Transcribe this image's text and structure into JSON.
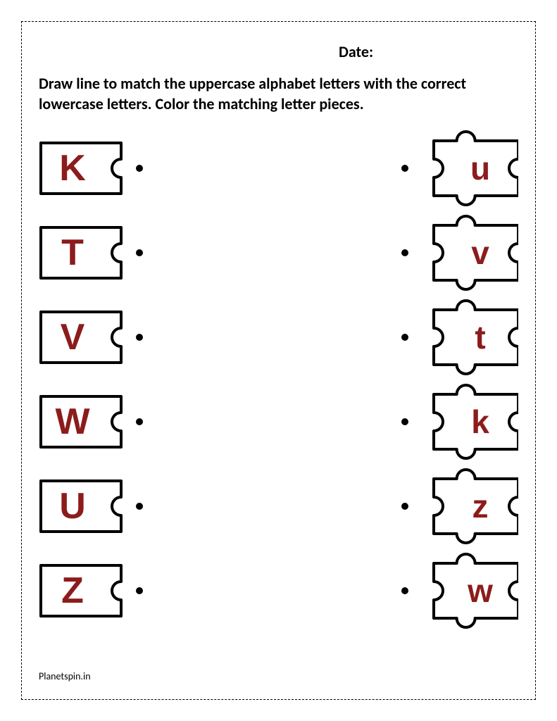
{
  "date_label": "Date:",
  "instructions": "Draw line to match the uppercase alphabet letters with the correct lowercase letters. Color the matching letter pieces.",
  "footer": "Planetspin.in",
  "letter_color": "#8C1C1C",
  "stroke_color": "#000000",
  "background": "#ffffff",
  "uppercase_font_size": 52,
  "lowercase_font_size": 46,
  "pairs": [
    {
      "upper": "K",
      "lower": "u"
    },
    {
      "upper": "T",
      "lower": "v"
    },
    {
      "upper": "V",
      "lower": "t"
    },
    {
      "upper": "W",
      "lower": "k"
    },
    {
      "upper": "U",
      "lower": "z"
    },
    {
      "upper": "Z",
      "lower": "w"
    }
  ]
}
